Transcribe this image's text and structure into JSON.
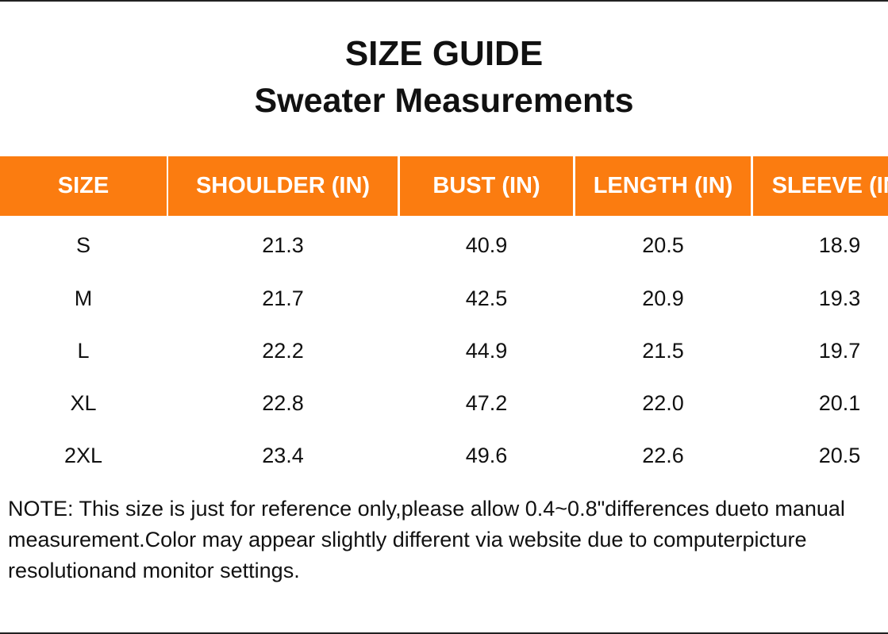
{
  "header": {
    "title": "SIZE GUIDE",
    "subtitle": "Sweater Measurements"
  },
  "table": {
    "columns": [
      "SIZE",
      "SHOULDER (IN)",
      "BUST (IN)",
      "LENGTH (IN)",
      "SLEEVE (IN)"
    ],
    "rows": [
      [
        "S",
        "21.3",
        "40.9",
        "20.5",
        "18.9"
      ],
      [
        "M",
        "21.7",
        "42.5",
        "20.9",
        "19.3"
      ],
      [
        "L",
        "22.2",
        "44.9",
        "21.5",
        "19.7"
      ],
      [
        "XL",
        "22.8",
        "47.2",
        "22.0",
        "20.1"
      ],
      [
        "2XL",
        "23.4",
        "49.6",
        "22.6",
        "20.5"
      ]
    ]
  },
  "note": "NOTE: This size is just for reference only,please allow 0.4~0.8\"differences dueto manual measurement.Color may appear slightly different via website due to computerpicture resolutionand monitor settings."
}
